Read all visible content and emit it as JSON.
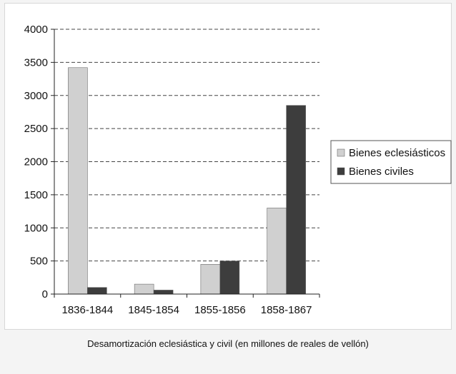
{
  "chart_data": {
    "type": "bar",
    "categories": [
      "1836-1844",
      "1845-1854",
      "1855-1856",
      "1858-1867"
    ],
    "series": [
      {
        "name": "Bienes eclesiásticos",
        "values": [
          3420,
          150,
          450,
          1300
        ],
        "color": "#d0d0d0"
      },
      {
        "name": "Bienes civiles",
        "values": [
          100,
          60,
          500,
          2850
        ],
        "color": "#3d3d3d"
      }
    ],
    "ylim": [
      0,
      4000
    ],
    "yticks": [
      0,
      500,
      1000,
      1500,
      2000,
      2500,
      3000,
      3500,
      4000
    ],
    "grid": true,
    "legend_position": "right"
  },
  "caption": "Desamortización eclesiástica y civil (en millones de reales de vellón)"
}
